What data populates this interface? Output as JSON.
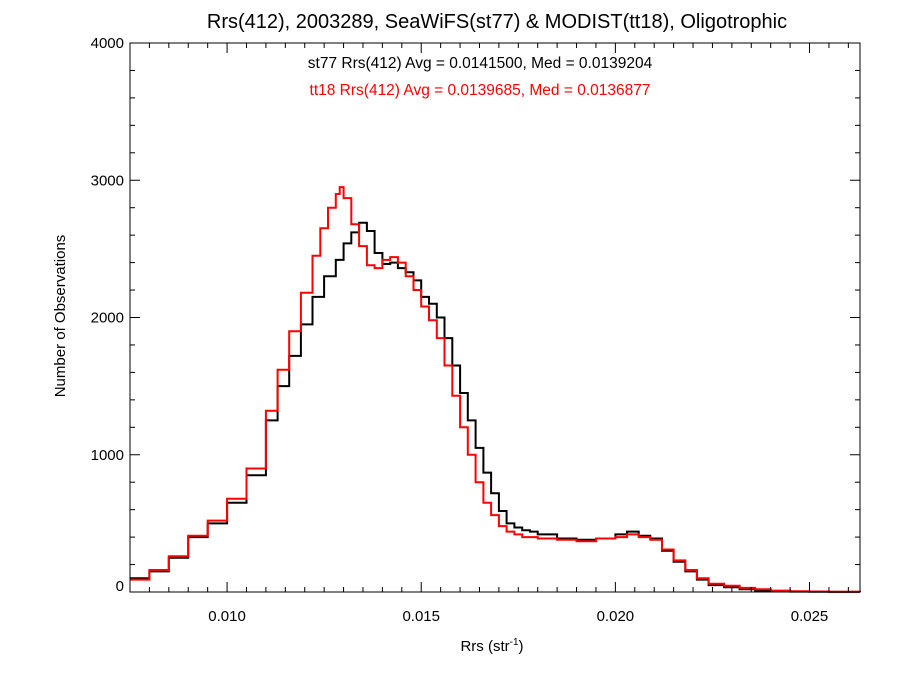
{
  "chart_data": {
    "type": "histogram-line",
    "title": "Rrs(412), 2003289, SeaWiFS(st77) & MODIST(tt18), Oligotrophic",
    "xlabel": {
      "base": "Rrs (str",
      "sup": "-1",
      "close": ")"
    },
    "ylabel": "Number of Observations",
    "xlim": [
      0.0075,
      0.0263
    ],
    "ylim": [
      0,
      4000
    ],
    "xticks": [
      0.01,
      0.015,
      0.02,
      0.025
    ],
    "xtick_labels": [
      "0.010",
      "0.015",
      "0.020",
      "0.025"
    ],
    "yticks": [
      0,
      1000,
      2000,
      3000,
      4000
    ],
    "ytick_labels": [
      "0",
      "1000",
      "2000",
      "3000",
      "4000"
    ],
    "grid": false,
    "annotations": [
      {
        "text": "st77 Rrs(412) Avg = 0.0141500, Med = 0.0139204",
        "color": "#000000"
      },
      {
        "text": "tt18 Rrs(412) Avg = 0.0139685, Med = 0.0136877",
        "color": "#ff0000"
      }
    ],
    "series": [
      {
        "color": "#000000",
        "x": [
          0.0075,
          0.008,
          0.0085,
          0.009,
          0.0095,
          0.01,
          0.0105,
          0.011,
          0.0113,
          0.0116,
          0.0119,
          0.0122,
          0.0125,
          0.0128,
          0.013,
          0.0132,
          0.0134,
          0.0136,
          0.0138,
          0.014,
          0.0142,
          0.0144,
          0.0146,
          0.0148,
          0.015,
          0.0152,
          0.0154,
          0.0156,
          0.0158,
          0.016,
          0.0162,
          0.0164,
          0.0166,
          0.0168,
          0.017,
          0.0172,
          0.0174,
          0.0176,
          0.0178,
          0.018,
          0.0185,
          0.019,
          0.0195,
          0.02,
          0.0203,
          0.0206,
          0.0209,
          0.0212,
          0.0215,
          0.0218,
          0.0221,
          0.0224,
          0.0228,
          0.0232,
          0.0236,
          0.024,
          0.0245,
          0.025,
          0.0255,
          0.0263
        ],
        "values": [
          100,
          150,
          250,
          400,
          500,
          650,
          850,
          1250,
          1500,
          1720,
          1950,
          2150,
          2300,
          2420,
          2540,
          2620,
          2690,
          2630,
          2470,
          2390,
          2400,
          2360,
          2330,
          2270,
          2150,
          2100,
          2000,
          1850,
          1650,
          1450,
          1250,
          1050,
          870,
          720,
          590,
          500,
          470,
          450,
          440,
          420,
          390,
          380,
          390,
          420,
          440,
          410,
          390,
          300,
          220,
          150,
          90,
          50,
          35,
          20,
          10,
          5,
          3,
          2,
          1,
          0
        ]
      },
      {
        "color": "#ff0000",
        "x": [
          0.0075,
          0.008,
          0.0085,
          0.009,
          0.0095,
          0.01,
          0.0105,
          0.011,
          0.0113,
          0.0116,
          0.0119,
          0.0122,
          0.0124,
          0.0126,
          0.0128,
          0.0129,
          0.013,
          0.0132,
          0.0134,
          0.0136,
          0.0138,
          0.014,
          0.0142,
          0.0144,
          0.0146,
          0.0148,
          0.015,
          0.0152,
          0.0154,
          0.0156,
          0.0158,
          0.016,
          0.0162,
          0.0164,
          0.0166,
          0.0168,
          0.017,
          0.0172,
          0.0174,
          0.0176,
          0.0178,
          0.018,
          0.0185,
          0.019,
          0.0195,
          0.02,
          0.0203,
          0.0206,
          0.0209,
          0.0212,
          0.0215,
          0.0218,
          0.0221,
          0.0224,
          0.0228,
          0.0232,
          0.0236,
          0.024,
          0.0245,
          0.025,
          0.0255,
          0.0263
        ],
        "values": [
          90,
          160,
          260,
          410,
          520,
          680,
          900,
          1320,
          1620,
          1900,
          2180,
          2450,
          2650,
          2800,
          2900,
          2950,
          2870,
          2680,
          2520,
          2380,
          2360,
          2420,
          2440,
          2400,
          2300,
          2200,
          2080,
          1980,
          1850,
          1650,
          1430,
          1200,
          1000,
          800,
          650,
          560,
          480,
          440,
          420,
          400,
          400,
          390,
          380,
          370,
          390,
          400,
          420,
          400,
          380,
          310,
          230,
          160,
          100,
          60,
          45,
          30,
          20,
          10,
          6,
          4,
          2,
          0
        ]
      }
    ]
  }
}
